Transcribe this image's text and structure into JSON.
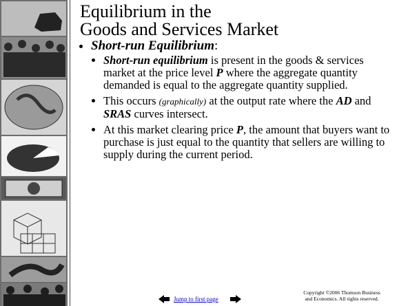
{
  "slide": {
    "title_lines": [
      "Equilibrium in the",
      "Goods and Services Market"
    ],
    "bullet": {
      "runs": [
        {
          "text": "Short-run Equilibrium",
          "style": "bi"
        },
        {
          "text": ":"
        }
      ],
      "sub_bullets": [
        {
          "runs": [
            {
              "text": "Short-run equilibrium",
              "style": "bi"
            },
            {
              "text": " is present in the goods & services market at the price level "
            },
            {
              "text": "P",
              "style": "bi"
            },
            {
              "text": " where the aggregate quantity demanded is equal to the aggregate quantity supplied."
            }
          ]
        },
        {
          "runs": [
            {
              "text": "This occurs "
            },
            {
              "text": "(graphically)",
              "style": "i"
            },
            {
              "text": " at the output rate where the "
            },
            {
              "text": "AD",
              "style": "bi"
            },
            {
              "text": " and "
            },
            {
              "text": "SRAS",
              "style": "bi"
            },
            {
              "text": " curves intersect."
            }
          ]
        },
        {
          "runs": [
            {
              "text": "At this market clearing price "
            },
            {
              "text": "P",
              "style": "bi"
            },
            {
              "text": ", the amount that buyers want to purchase is just equal to the quantity that sellers are willing to supply during the current period."
            }
          ]
        }
      ]
    },
    "footer": {
      "link": "Jump to first page",
      "copyright": "Copyright ©2006  Thomson Business and Economics. All rights reserved."
    }
  }
}
